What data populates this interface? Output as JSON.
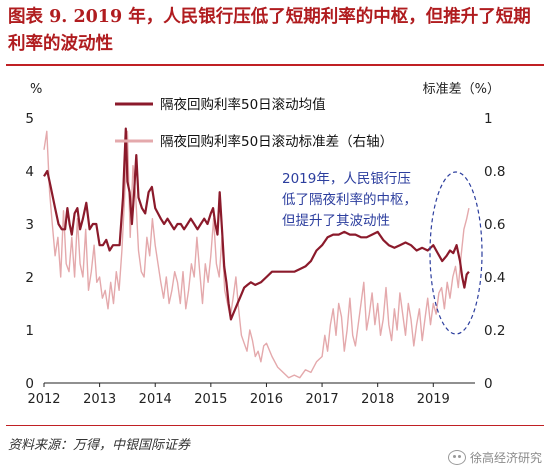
{
  "header": {
    "title": "图表 9. 2019 年，人民银行压低了短期利率的中枢，但推升了短期利率的波动性"
  },
  "footer": {
    "source": "资料来源：万得，中银国际证券",
    "watermark": "徐高经济研究"
  },
  "colors": {
    "title": "#b01c1f",
    "series_mean": "#8b1a2b",
    "series_std": "#e4a9ac",
    "annotation": "#2c3e9e",
    "rule": "#c02024"
  },
  "chart_data": {
    "type": "line",
    "ylabel_left": "%",
    "ylabel_right": "标准差（%）",
    "xlim": [
      2012,
      2019.75
    ],
    "ylim_left": [
      0,
      5
    ],
    "ylim_right": [
      0,
      1
    ],
    "xticks": [
      "2012",
      "2013",
      "2014",
      "2015",
      "2016",
      "2017",
      "2018",
      "2019"
    ],
    "yticks_left": [
      "0",
      "1",
      "2",
      "3",
      "4",
      "5"
    ],
    "yticks_right": [
      "0",
      "0.2",
      "0.4",
      "0.6",
      "0.8",
      "1"
    ],
    "legend_position": "top-center",
    "annotation": {
      "lines": [
        "2019年，人民银行压",
        "低了隔夜利率的中枢，",
        "但提升了其波动性"
      ]
    },
    "series": [
      {
        "name": "隔夜回购利率50日滚动均值",
        "axis": "left",
        "x": [
          2012.0,
          2012.06,
          2012.12,
          2012.2,
          2012.26,
          2012.32,
          2012.38,
          2012.42,
          2012.46,
          2012.5,
          2012.55,
          2012.6,
          2012.65,
          2012.7,
          2012.76,
          2012.82,
          2012.88,
          2012.94,
          2013.0,
          2013.06,
          2013.12,
          2013.18,
          2013.24,
          2013.3,
          2013.36,
          2013.42,
          2013.47,
          2013.5,
          2013.54,
          2013.58,
          2013.62,
          2013.66,
          2013.7,
          2013.76,
          2013.82,
          2013.88,
          2013.94,
          2014.0,
          2014.05,
          2014.1,
          2014.16,
          2014.22,
          2014.28,
          2014.34,
          2014.4,
          2014.46,
          2014.52,
          2014.58,
          2014.64,
          2014.7,
          2014.76,
          2014.82,
          2014.88,
          2014.94,
          2015.0,
          2015.04,
          2015.08,
          2015.12,
          2015.16,
          2015.2,
          2015.24,
          2015.28,
          2015.32,
          2015.36,
          2015.4,
          2015.44,
          2015.48,
          2015.52,
          2015.56,
          2015.6,
          2015.66,
          2015.72,
          2015.8,
          2015.9,
          2016.0,
          2016.1,
          2016.2,
          2016.3,
          2016.4,
          2016.5,
          2016.6,
          2016.7,
          2016.8,
          2016.9,
          2017.0,
          2017.1,
          2017.2,
          2017.3,
          2017.4,
          2017.5,
          2017.6,
          2017.7,
          2017.8,
          2017.9,
          2018.0,
          2018.1,
          2018.2,
          2018.3,
          2018.4,
          2018.5,
          2018.6,
          2018.7,
          2018.8,
          2018.9,
          2019.0,
          2019.08,
          2019.16,
          2019.24,
          2019.3,
          2019.36,
          2019.42,
          2019.48,
          2019.52,
          2019.56,
          2019.6,
          2019.64
        ],
        "y": [
          3.9,
          4.0,
          3.7,
          3.3,
          3.0,
          2.9,
          2.9,
          3.3,
          3.0,
          2.8,
          3.2,
          3.3,
          2.9,
          3.1,
          3.4,
          2.9,
          3.0,
          3.0,
          2.6,
          2.6,
          2.7,
          2.5,
          2.6,
          2.6,
          2.6,
          3.5,
          4.8,
          3.8,
          3.6,
          3.0,
          3.6,
          4.3,
          3.5,
          3.3,
          3.2,
          3.6,
          3.7,
          3.3,
          3.2,
          3.1,
          3.0,
          3.1,
          3.0,
          2.9,
          3.0,
          3.0,
          2.9,
          3.0,
          3.1,
          3.0,
          2.9,
          3.0,
          3.1,
          3.0,
          3.2,
          3.3,
          3.0,
          2.8,
          3.6,
          2.9,
          2.2,
          1.9,
          1.5,
          1.2,
          1.3,
          1.4,
          1.5,
          1.6,
          1.7,
          1.8,
          1.85,
          1.9,
          1.85,
          1.9,
          2.0,
          2.1,
          2.1,
          2.1,
          2.1,
          2.1,
          2.15,
          2.2,
          2.3,
          2.5,
          2.6,
          2.75,
          2.8,
          2.8,
          2.85,
          2.8,
          2.8,
          2.75,
          2.75,
          2.8,
          2.85,
          2.7,
          2.6,
          2.55,
          2.6,
          2.65,
          2.6,
          2.5,
          2.55,
          2.5,
          2.6,
          2.45,
          2.3,
          2.4,
          2.5,
          2.45,
          2.6,
          2.3,
          2.0,
          1.8,
          2.05,
          2.1
        ]
      },
      {
        "name": "隔夜回购利率50日滚动标准差（右轴）",
        "axis": "right",
        "x": [
          2012.0,
          2012.05,
          2012.1,
          2012.15,
          2012.2,
          2012.25,
          2012.3,
          2012.35,
          2012.4,
          2012.45,
          2012.5,
          2012.55,
          2012.6,
          2012.65,
          2012.7,
          2012.75,
          2012.8,
          2012.85,
          2012.9,
          2012.95,
          2013.0,
          2013.05,
          2013.1,
          2013.15,
          2013.2,
          2013.25,
          2013.3,
          2013.35,
          2013.4,
          2013.45,
          2013.5,
          2013.55,
          2013.6,
          2013.65,
          2013.7,
          2013.75,
          2013.8,
          2013.85,
          2013.9,
          2013.95,
          2014.0,
          2014.05,
          2014.1,
          2014.15,
          2014.2,
          2014.25,
          2014.3,
          2014.35,
          2014.4,
          2014.45,
          2014.5,
          2014.55,
          2014.6,
          2014.65,
          2014.7,
          2014.75,
          2014.8,
          2014.85,
          2014.9,
          2014.95,
          2015.0,
          2015.05,
          2015.1,
          2015.15,
          2015.2,
          2015.25,
          2015.3,
          2015.35,
          2015.4,
          2015.45,
          2015.5,
          2015.55,
          2015.6,
          2015.65,
          2015.7,
          2015.75,
          2015.8,
          2015.85,
          2015.9,
          2015.95,
          2016.0,
          2016.1,
          2016.2,
          2016.3,
          2016.4,
          2016.5,
          2016.6,
          2016.7,
          2016.8,
          2016.9,
          2017.0,
          2017.05,
          2017.1,
          2017.15,
          2017.2,
          2017.25,
          2017.3,
          2017.35,
          2017.4,
          2017.45,
          2017.5,
          2017.55,
          2017.6,
          2017.65,
          2017.7,
          2017.75,
          2017.8,
          2017.85,
          2017.9,
          2017.95,
          2018.0,
          2018.05,
          2018.1,
          2018.15,
          2018.2,
          2018.25,
          2018.3,
          2018.35,
          2018.4,
          2018.45,
          2018.5,
          2018.55,
          2018.6,
          2018.65,
          2018.7,
          2018.75,
          2018.8,
          2018.85,
          2018.9,
          2018.95,
          2019.0,
          2019.05,
          2019.1,
          2019.15,
          2019.2,
          2019.25,
          2019.3,
          2019.35,
          2019.4,
          2019.45,
          2019.5,
          2019.55,
          2019.6,
          2019.64
        ],
        "y": [
          0.88,
          0.95,
          0.72,
          0.6,
          0.48,
          0.55,
          0.4,
          0.65,
          0.45,
          0.42,
          0.55,
          0.4,
          0.62,
          0.45,
          0.4,
          0.58,
          0.35,
          0.42,
          0.52,
          0.38,
          0.4,
          0.32,
          0.35,
          0.28,
          0.38,
          0.3,
          0.42,
          0.35,
          0.5,
          0.7,
          0.95,
          0.55,
          0.82,
          0.7,
          0.5,
          0.42,
          0.4,
          0.55,
          0.48,
          0.62,
          0.52,
          0.45,
          0.38,
          0.32,
          0.4,
          0.3,
          0.35,
          0.42,
          0.38,
          0.3,
          0.42,
          0.28,
          0.35,
          0.45,
          0.4,
          0.55,
          0.42,
          0.3,
          0.45,
          0.38,
          0.48,
          0.62,
          0.45,
          0.4,
          0.55,
          0.35,
          0.3,
          0.25,
          0.32,
          0.4,
          0.28,
          0.18,
          0.15,
          0.12,
          0.2,
          0.16,
          0.1,
          0.12,
          0.08,
          0.14,
          0.15,
          0.1,
          0.06,
          0.04,
          0.02,
          0.03,
          0.02,
          0.05,
          0.04,
          0.08,
          0.1,
          0.18,
          0.12,
          0.22,
          0.28,
          0.18,
          0.3,
          0.25,
          0.12,
          0.2,
          0.32,
          0.18,
          0.14,
          0.22,
          0.3,
          0.38,
          0.2,
          0.26,
          0.34,
          0.22,
          0.3,
          0.18,
          0.24,
          0.36,
          0.22,
          0.16,
          0.28,
          0.2,
          0.34,
          0.26,
          0.18,
          0.3,
          0.24,
          0.14,
          0.22,
          0.28,
          0.16,
          0.24,
          0.32,
          0.22,
          0.3,
          0.26,
          0.34,
          0.36,
          0.28,
          0.38,
          0.32,
          0.4,
          0.44,
          0.36,
          0.48,
          0.58,
          0.62,
          0.66
        ]
      }
    ]
  }
}
